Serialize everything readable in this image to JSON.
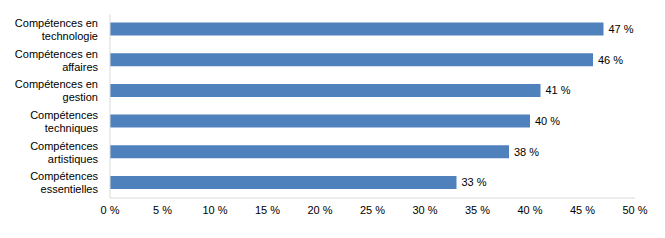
{
  "chart_data": {
    "type": "bar",
    "orientation": "horizontal",
    "categories": [
      "Compétences en technologie",
      "Compétences en affaires",
      "Compétences en gestion",
      "Compétences techniques",
      "Compétences artistiques",
      "Compétences essentielles"
    ],
    "values": [
      47,
      46,
      41,
      40,
      38,
      33
    ],
    "value_labels": [
      "47 %",
      "46 %",
      "41 %",
      "40 %",
      "38 %",
      "33 %"
    ],
    "data_labels": true,
    "color": "#4f81bd",
    "xlim": [
      0,
      50
    ],
    "xticks": [
      {
        "value": 0,
        "label": "0 %"
      },
      {
        "value": 5,
        "label": "5 %"
      },
      {
        "value": 10,
        "label": "10 %"
      },
      {
        "value": 15,
        "label": "15 %"
      },
      {
        "value": 20,
        "label": "20 %"
      },
      {
        "value": 25,
        "label": "25 %"
      },
      {
        "value": 30,
        "label": "30 %"
      },
      {
        "value": 35,
        "label": "35 %"
      },
      {
        "value": 40,
        "label": "40 %"
      },
      {
        "value": 45,
        "label": "45 %"
      },
      {
        "value": 50,
        "label": "50 %"
      }
    ],
    "grid": false
  }
}
